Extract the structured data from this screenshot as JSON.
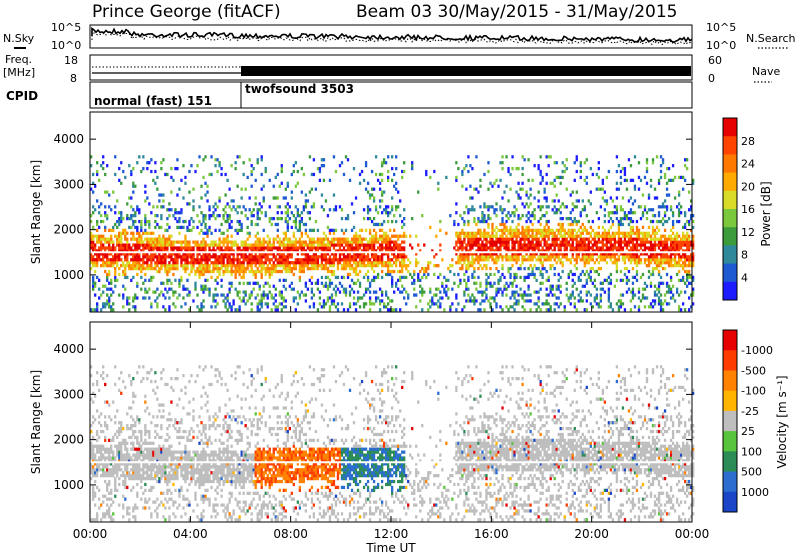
{
  "header": {
    "station": "Prince George (fitACF)",
    "beam_and_dates": "Beam 03 30/May/2015 - 31/May/2015"
  },
  "side_labels": {
    "nsky": "N.Sky",
    "freq_line1": "Freq.",
    "freq_line2": "[MHz]",
    "cpid": "CPID",
    "nsearch": "N.Search",
    "nave": "Nave"
  },
  "chart_data": [
    {
      "type": "line",
      "name": "noise",
      "yscale": "log",
      "yticks_left": [
        "10^5",
        "10^0"
      ],
      "yticks_right": [
        "10^5",
        "10^0"
      ],
      "series": [
        {
          "name": "N.Sky",
          "style": "solid"
        },
        {
          "name": "N.Search",
          "style": "dotted"
        }
      ]
    },
    {
      "type": "line",
      "name": "frequency-and-nave",
      "yticks_left": [
        "18",
        "8"
      ],
      "yticks_right": [
        "60",
        "0"
      ],
      "series": [
        {
          "name": "Freq.",
          "style": "dotted"
        },
        {
          "name": "Nave",
          "style": "solid"
        }
      ]
    },
    {
      "type": "table",
      "name": "cpid",
      "segments": [
        {
          "label": "normal (fast) 151",
          "start_h": 0,
          "end_h": 6
        },
        {
          "label": "twofsound 3503",
          "start_h": 6,
          "end_h": 24
        }
      ]
    },
    {
      "type": "heatmap",
      "name": "power",
      "ylabel": "Slant Range [km]",
      "ylim": [
        180,
        4600
      ],
      "yticks": [
        1000,
        2000,
        3000,
        4000
      ],
      "colorbar": {
        "label": "Power [dB]",
        "ticks": [
          "4",
          "8",
          "12",
          "16",
          "20",
          "24",
          "28"
        ],
        "colors": [
          "#1c1cff",
          "#1e5ad2",
          "#2e8a9a",
          "#3c9c3c",
          "#7cc83c",
          "#d8dc28",
          "#ffaa00",
          "#ff7800",
          "#ff4400",
          "#e60000"
        ]
      }
    },
    {
      "type": "heatmap",
      "name": "velocity",
      "ylabel": "Slant Range [km]",
      "xlabel": "Time UT",
      "ylim": [
        180,
        4600
      ],
      "yticks": [
        1000,
        2000,
        3000,
        4000
      ],
      "xticks": [
        "00:00",
        "04:00",
        "08:00",
        "12:00",
        "16:00",
        "20:00",
        "00:00"
      ],
      "colorbar": {
        "label": "Velocity [m s⁻¹]",
        "ticks": [
          "1000",
          "500",
          "100",
          "25",
          "-25",
          "-100",
          "-500",
          "-1000"
        ],
        "colors": [
          "#1c46c8",
          "#2c6ed0",
          "#2c8c56",
          "#58c43c",
          "#bebebe",
          "#ffb400",
          "#ff8200",
          "#ff3c00",
          "#e60000"
        ]
      }
    }
  ]
}
